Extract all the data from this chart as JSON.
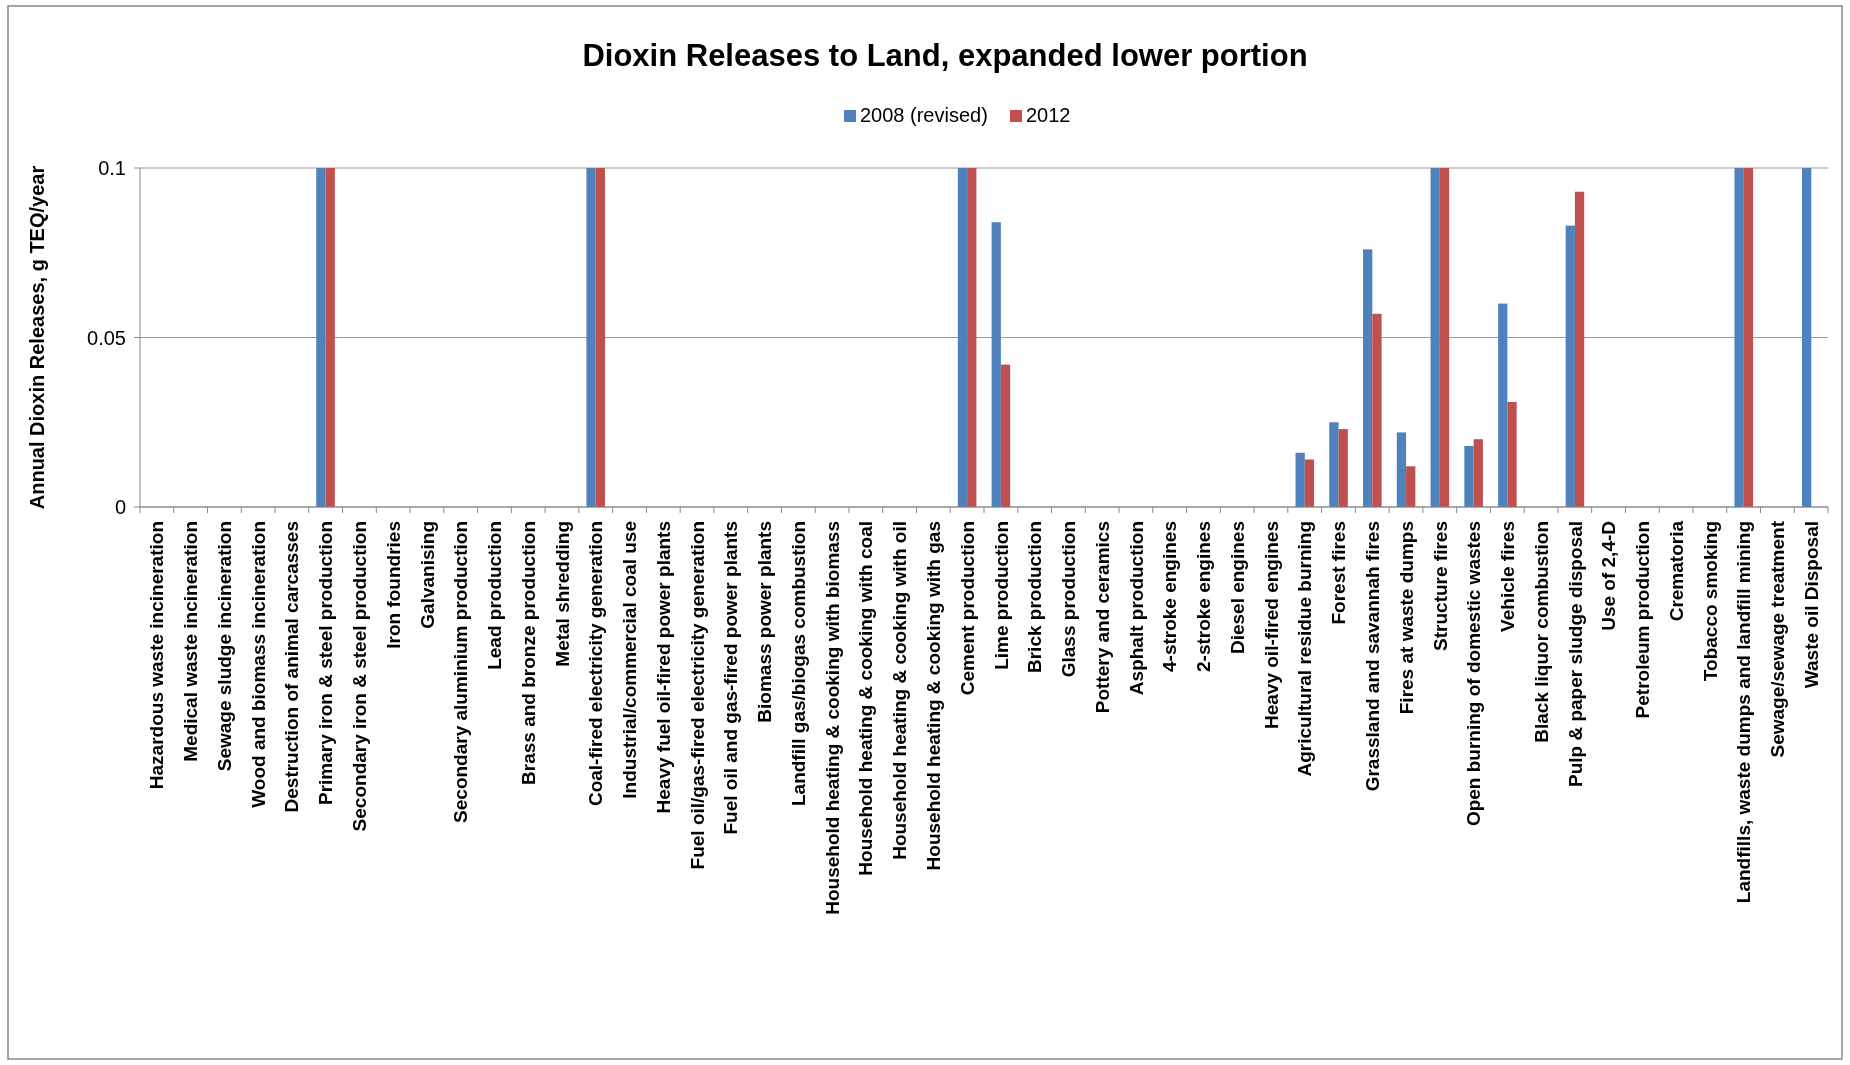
{
  "chart_data": {
    "type": "bar",
    "title": "Dioxin Releases to Land, expanded lower portion",
    "ylabel": "Annual Dioxin Releases, g TEQ/year",
    "categories": [
      "Hazardous waste incineration",
      "Medical waste incineration",
      "Sewage sludge incineration",
      "Wood and biomass incineration",
      "Destruction of animal carcasses",
      "Primary iron & steel production",
      "Secondary iron & steel production",
      "Iron foundries",
      "Galvanising",
      "Secondary aluminium production",
      "Lead production",
      "Brass and bronze production",
      "Metal shredding",
      "Coal-fired electricity generation",
      "Industrial/commercial coal use",
      "Heavy fuel oil-fired power plants",
      "Fuel oil/gas-fired electricity generation",
      "Fuel oil and gas-fired power plants",
      "Biomass power plants",
      "Landfill gas/biogas combustion",
      "Household heating & cooking  with biomass",
      "Household heating & cooking  with coal",
      "Household heating & cooking  with oil",
      "Household heating & cooking  with gas",
      "Cement production",
      "Lime production",
      "Brick production",
      "Glass production",
      "Pottery and ceramics",
      "Asphalt production",
      "4-stroke engines",
      "2-stroke engines",
      "Diesel engines",
      "Heavy oil-fired engines",
      "Agricultural residue burning",
      "Forest fires",
      "Grassland and savannah fires",
      "Fires at waste dumps",
      "Structure fires",
      "Open burning of domestic wastes",
      "Vehicle fires",
      "Black liquor combustion",
      "Pulp & paper sludge disposal",
      "Use of 2,4-D",
      "Petroleum production",
      "Crematoria",
      "Tobacco smoking",
      "Landfills, waste dumps and landfill mining",
      "Sewage/sewage treatment",
      "Waste oil Disposal"
    ],
    "series": [
      {
        "name": "2008 (revised)",
        "color": "#4f81bd",
        "values": [
          0,
          0,
          0,
          0,
          0,
          0.1,
          0,
          0,
          0,
          0,
          0,
          0,
          0,
          0.1,
          0,
          0,
          0,
          0,
          0,
          0,
          0,
          0,
          0,
          0,
          0.1,
          0.084,
          0,
          0,
          0,
          0,
          0,
          0,
          0,
          0,
          0.016,
          0.025,
          0.076,
          0.022,
          0.1,
          0.018,
          0.06,
          0,
          0.083,
          0,
          0,
          0,
          0,
          0.1,
          0,
          0.1
        ]
      },
      {
        "name": "2012",
        "color": "#c0504d",
        "values": [
          0,
          0,
          0,
          0,
          0,
          0.1,
          0,
          0,
          0,
          0,
          0,
          0,
          0,
          0.1,
          0,
          0,
          0,
          0,
          0,
          0,
          0,
          0,
          0,
          0,
          0.1,
          0.042,
          0,
          0,
          0,
          0,
          0,
          0,
          0,
          0,
          0.014,
          0.023,
          0.057,
          0.012,
          0.1,
          0.02,
          0.031,
          0,
          0.093,
          0,
          0,
          0,
          0,
          0.1,
          0,
          0
        ]
      }
    ],
    "ylim": [
      0,
      0.1
    ],
    "yticks": [
      0,
      {
        "value": 0.05,
        "label": "0.05"
      },
      {
        "value": 0.1,
        "label": "0.1"
      }
    ],
    "grid": "y",
    "legend": "top"
  }
}
